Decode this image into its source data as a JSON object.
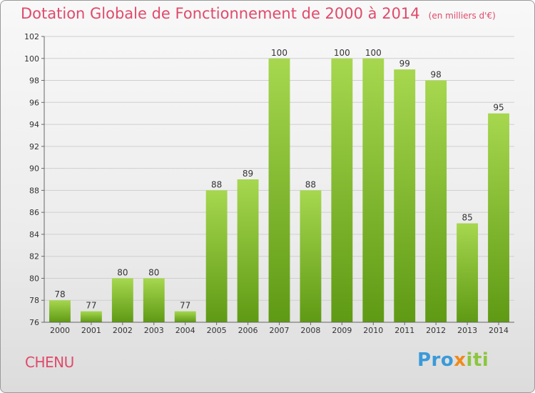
{
  "header": {
    "title": "Dotation Globale de Fonctionnement de 2000 à 2014",
    "subtitle": "(en milliers d'€)"
  },
  "footer": {
    "commune": "CHENU",
    "brand": "Proxiti"
  },
  "colors": {
    "bar_light": "#a6d74f",
    "bar_dark": "#5f9a14",
    "title": "#e04a6a",
    "grid": "#cfcfcf"
  },
  "chart_data": {
    "type": "bar",
    "title": "Dotation Globale de Fonctionnement de 2000 à 2014",
    "subtitle": "(en milliers d'€)",
    "xlabel": "",
    "ylabel": "",
    "categories": [
      "2000",
      "2001",
      "2002",
      "2003",
      "2004",
      "2005",
      "2006",
      "2007",
      "2008",
      "2009",
      "2010",
      "2011",
      "2012",
      "2013",
      "2014"
    ],
    "values": [
      78,
      77,
      80,
      80,
      77,
      88,
      89,
      100,
      88,
      100,
      100,
      99,
      98,
      85,
      95
    ],
    "ylim": [
      76,
      102
    ],
    "yticks": [
      76,
      78,
      80,
      82,
      84,
      86,
      88,
      90,
      92,
      94,
      96,
      98,
      100,
      102
    ],
    "grid": true,
    "legend": "none"
  }
}
